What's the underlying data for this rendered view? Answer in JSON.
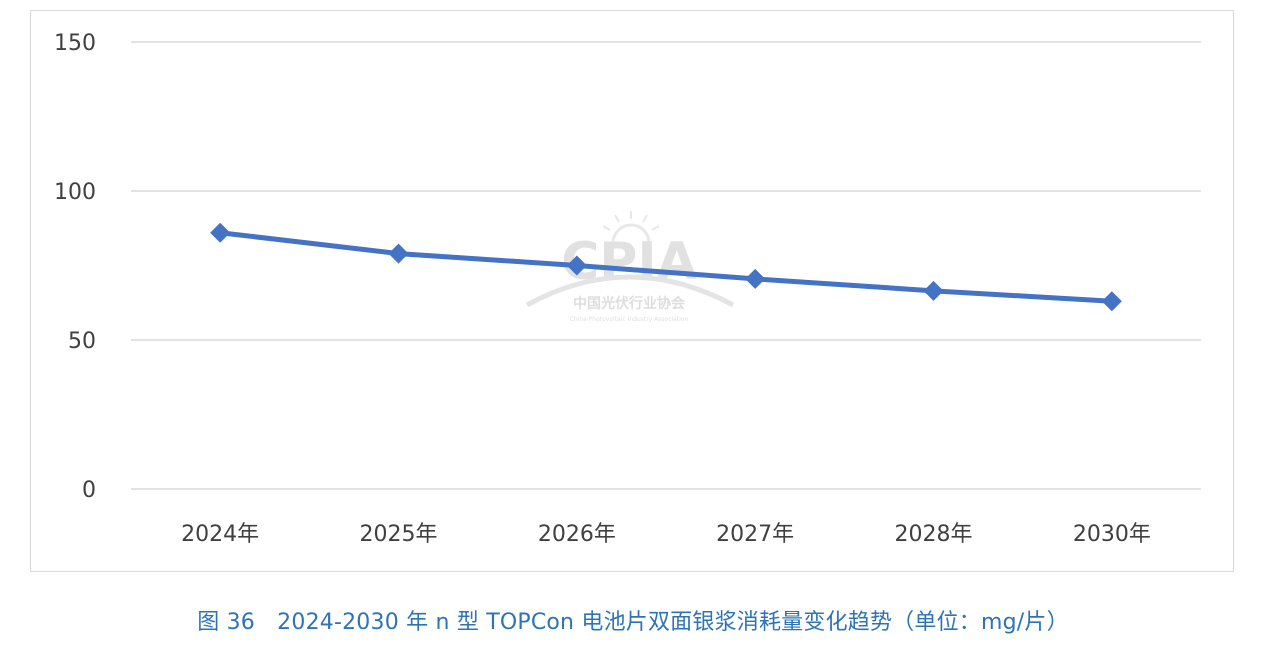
{
  "chart_data": {
    "type": "line",
    "categories": [
      "2024年",
      "2025年",
      "2026年",
      "2027年",
      "2028年",
      "2030年"
    ],
    "series": [
      {
        "values": [
          86,
          79,
          75,
          70.5,
          66.5,
          63
        ],
        "color": "#4472c4",
        "marker": "diamond"
      }
    ],
    "ylim": [
      0,
      150
    ],
    "yticks": [
      0,
      50,
      100,
      150
    ],
    "grid": true,
    "legend": "none"
  },
  "watermark": {
    "logo_text": "CPIA",
    "org_name_cn": "中国光伏行业协会",
    "org_name_en": "China Photovoltaic Industry Association"
  },
  "caption": "图 36　2024-2030 年 n 型 TOPCon 电池片双面银浆消耗量变化趋势（单位：mg/片）",
  "colors": {
    "line": "#4472c4",
    "grid": "#d9d9d9",
    "axis_text": "#404040",
    "caption": "#2e74b5"
  }
}
